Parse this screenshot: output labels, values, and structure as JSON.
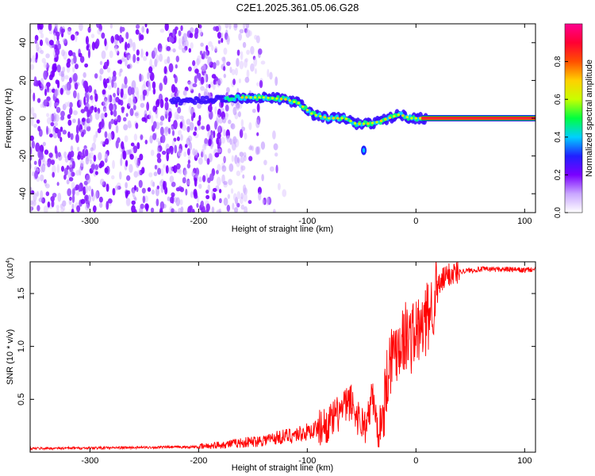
{
  "title": "C2E1.2025.361.05.06.G28",
  "chart_data": [
    {
      "type": "heatmap",
      "title": "C2E1.2025.361.05.06.G28",
      "xlabel": "Height of straight line (km)",
      "ylabel": "Frequency (Hz)",
      "xlim": [
        -355,
        110
      ],
      "ylim": [
        -50,
        50
      ],
      "xticks": [
        -300,
        -200,
        -100,
        0,
        100
      ],
      "yticks": [
        -40,
        -20,
        0,
        20,
        40
      ],
      "colorbar": {
        "label": "Normalized spectral amplitude",
        "range": [
          0,
          1
        ],
        "ticks": [
          "0.0",
          "0.2",
          "0.4",
          "0.6",
          "0.8"
        ],
        "colors": [
          "#ffffff",
          "#c9a6ff",
          "#7a00ff",
          "#2020ff",
          "#00d0ff",
          "#00ff40",
          "#c8ff00",
          "#ffd000",
          "#ff5000",
          "#ff0033",
          "#ff0090"
        ]
      },
      "trace": {
        "x": [
          -225,
          -180,
          -160,
          -140,
          -120,
          -108,
          -95,
          -80,
          -65,
          -55,
          -45,
          -35,
          -25,
          -15,
          -5,
          0,
          10,
          50,
          110
        ],
        "y": [
          9,
          10,
          11,
          11,
          10,
          8,
          2,
          0,
          0,
          -3,
          -3,
          -2,
          0,
          2,
          0,
          0,
          0,
          0,
          0
        ]
      },
      "blob": {
        "x": -48,
        "y": -17
      }
    },
    {
      "type": "line",
      "xlabel": "Height of straight line (km)",
      "ylabel": "SNR (10 * v/v)",
      "multiplier": "(x10",
      "multiplier_exp": "4",
      "multiplier_close": ")",
      "xlim": [
        -355,
        110
      ],
      "ylim": [
        0,
        18000
      ],
      "xticks": [
        -300,
        -200,
        -100,
        0,
        100
      ],
      "yticks": [
        5000,
        10000,
        15000
      ],
      "ytick_labels": [
        "0.5",
        "1.0",
        "1.5"
      ],
      "color": "#ff0000",
      "series": [
        {
          "name": "SNR",
          "x": [
            -355,
            -300,
            -250,
            -200,
            -180,
            -150,
            -120,
            -100,
            -80,
            -70,
            -60,
            -55,
            -50,
            -45,
            -40,
            -35,
            -30,
            -25,
            -20,
            -15,
            -10,
            -5,
            0,
            5,
            10,
            15,
            20,
            25,
            30,
            40,
            50,
            60,
            80,
            100,
            110
          ],
          "y": [
            350,
            400,
            450,
            500,
            700,
            1000,
            1500,
            1900,
            2700,
            3800,
            4800,
            3600,
            2800,
            2500,
            5500,
            1800,
            4000,
            8500,
            9600,
            10500,
            11000,
            10800,
            11300,
            11500,
            12500,
            14000,
            15500,
            16300,
            16800,
            17100,
            17200,
            17300,
            17300,
            17200,
            17300
          ]
        }
      ]
    }
  ]
}
